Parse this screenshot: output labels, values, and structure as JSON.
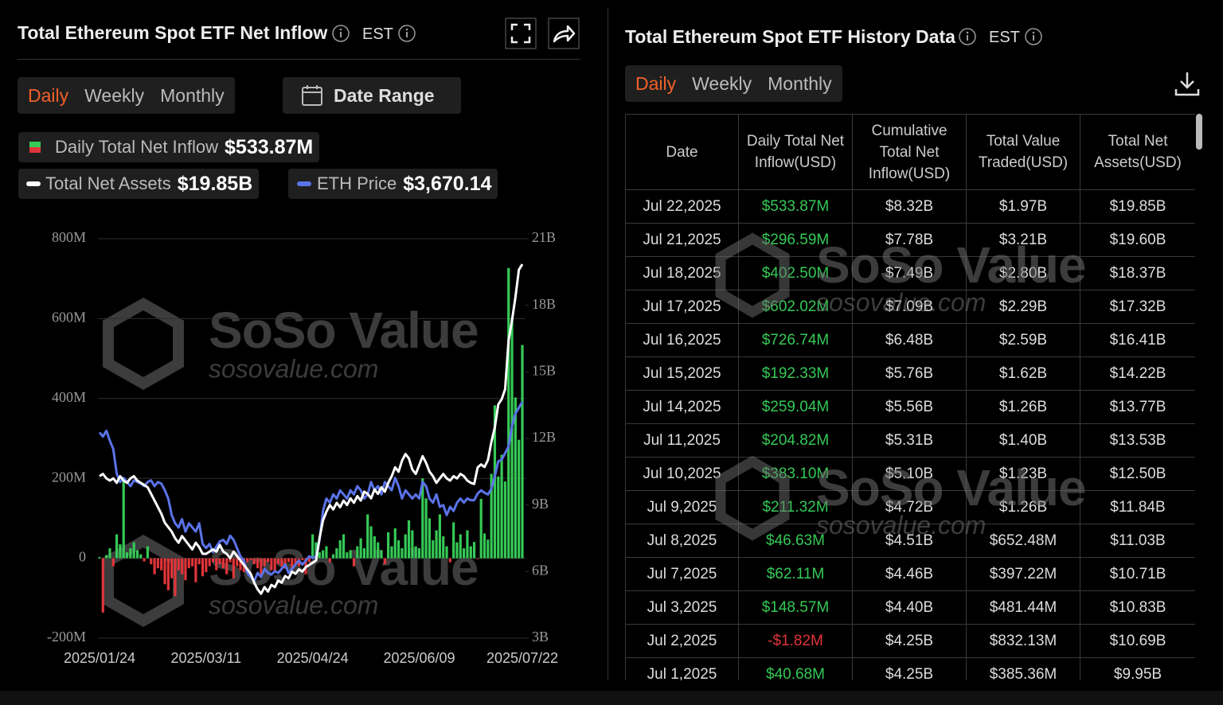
{
  "header": {
    "title": "Total Ethereum Spot ETF Net Inflow",
    "timezone": "EST",
    "tabs": [
      "Daily",
      "Weekly",
      "Monthly"
    ],
    "date_range": "Date Range"
  },
  "history": {
    "title": "Total Ethereum Spot ETF History Data",
    "timezone": "EST",
    "tabs": [
      "Daily",
      "Weekly",
      "Monthly"
    ],
    "columns": [
      "Date",
      "Daily Total Net Inflow(USD)",
      "Cumulative Total Net Inflow(USD)",
      "Total Value Traded(USD)",
      "Total Net Assets(USD)"
    ],
    "rows": [
      [
        "Jul 22,2025",
        "$533.87M",
        "$8.32B",
        "$1.97B",
        "$19.85B"
      ],
      [
        "Jul 21,2025",
        "$296.59M",
        "$7.78B",
        "$3.21B",
        "$19.60B"
      ],
      [
        "Jul 18,2025",
        "$402.50M",
        "$7.49B",
        "$2.80B",
        "$18.37B"
      ],
      [
        "Jul 17,2025",
        "$602.02M",
        "$7.09B",
        "$2.29B",
        "$17.32B"
      ],
      [
        "Jul 16,2025",
        "$726.74M",
        "$6.48B",
        "$2.59B",
        "$16.41B"
      ],
      [
        "Jul 15,2025",
        "$192.33M",
        "$5.76B",
        "$1.62B",
        "$14.22B"
      ],
      [
        "Jul 14,2025",
        "$259.04M",
        "$5.56B",
        "$1.26B",
        "$13.77B"
      ],
      [
        "Jul 11,2025",
        "$204.82M",
        "$5.31B",
        "$1.40B",
        "$13.53B"
      ],
      [
        "Jul 10,2025",
        "$383.10M",
        "$5.10B",
        "$1.23B",
        "$12.50B"
      ],
      [
        "Jul 9,2025",
        "$211.32M",
        "$4.72B",
        "$1.26B",
        "$11.84B"
      ],
      [
        "Jul 8,2025",
        "$46.63M",
        "$4.51B",
        "$652.48M",
        "$11.03B"
      ],
      [
        "Jul 7,2025",
        "$62.11M",
        "$4.46B",
        "$397.22M",
        "$10.71B"
      ],
      [
        "Jul 3,2025",
        "$148.57M",
        "$4.40B",
        "$481.44M",
        "$10.83B"
      ],
      [
        "Jul 2,2025",
        "-$1.82M",
        "$4.25B",
        "$832.13M",
        "$10.69B"
      ],
      [
        "Jul 1,2025",
        "$40.68M",
        "$4.25B",
        "$385.36M",
        "$9.95B"
      ]
    ]
  },
  "watermark": [
    "SoSo Value",
    "sosovalue.com"
  ],
  "chart_data": {
    "type": "bar",
    "categories": [
      "2025/01/24",
      null,
      null,
      null,
      null,
      null,
      null,
      null,
      null,
      null,
      null,
      null,
      null,
      null,
      null,
      null,
      null,
      null,
      null,
      null,
      null,
      null,
      null,
      null,
      null,
      null,
      null,
      null,
      null,
      null,
      null,
      "2025/03/11",
      null,
      null,
      null,
      null,
      null,
      null,
      null,
      null,
      null,
      null,
      null,
      null,
      null,
      null,
      null,
      null,
      null,
      null,
      null,
      null,
      null,
      null,
      null,
      null,
      null,
      null,
      null,
      null,
      null,
      null,
      "2025/04/24",
      null,
      null,
      null,
      null,
      null,
      null,
      null,
      null,
      null,
      null,
      null,
      null,
      null,
      null,
      null,
      null,
      null,
      null,
      null,
      null,
      null,
      null,
      null,
      null,
      null,
      null,
      null,
      null,
      null,
      null,
      "2025/06/09",
      null,
      null,
      null,
      null,
      null,
      null,
      null,
      null,
      null,
      null,
      null,
      null,
      null,
      null,
      null,
      null,
      null,
      null,
      null,
      null,
      null,
      null,
      null,
      null,
      null,
      null,
      null,
      null,
      null,
      "2025/07/22"
    ],
    "ylim": [
      -200,
      800
    ],
    "yticks": [
      {
        "value": -200,
        "label": "-200M"
      },
      0,
      {
        "value": 200,
        "label": "200M"
      },
      {
        "value": 400,
        "label": "400M"
      },
      {
        "value": 600,
        "label": "600M"
      },
      {
        "value": 800,
        "label": "800M"
      }
    ],
    "y2lim": [
      3,
      21
    ],
    "y2ticks": [
      {
        "value": 3,
        "label": "3B"
      },
      {
        "value": 6,
        "label": "6B"
      },
      {
        "value": 9,
        "label": "9B"
      },
      {
        "value": 12,
        "label": "12B"
      },
      {
        "value": 15,
        "label": "15B"
      },
      {
        "value": 18,
        "label": "18B"
      },
      {
        "value": 21,
        "label": "21B"
      }
    ],
    "y3lim": [
      810,
      5645
    ],
    "grid": true,
    "series": [
      {
        "name": "Daily Total Net Inflow",
        "current": "$533.87M",
        "color": "#35c956",
        "negative_color": "#e0353a",
        "values": [
          3,
          -136,
          8,
          25,
          -20,
          60,
          35,
          200,
          15,
          25,
          40,
          20,
          10,
          -8,
          30,
          -15,
          -40,
          -25,
          -30,
          -65,
          -80,
          -50,
          -95,
          -30,
          -40,
          -55,
          -25,
          -20,
          -60,
          -15,
          -45,
          -35,
          -20,
          -10,
          -30,
          -15,
          -25,
          -40,
          -10,
          -50,
          -20,
          -30,
          -35,
          -10,
          -5,
          -15,
          -25,
          -40,
          -20,
          -10,
          -30,
          -35,
          -15,
          -20,
          -25,
          -10,
          -30,
          -15,
          -20,
          -5,
          -40,
          -10,
          60,
          40,
          15,
          20,
          30,
          -10,
          10,
          25,
          45,
          60,
          15,
          20,
          -20,
          30,
          50,
          25,
          110,
          80,
          55,
          40,
          20,
          -15,
          65,
          30,
          75,
          45,
          25,
          60,
          95,
          70,
          30,
          25,
          200,
          150,
          100,
          45,
          70,
          110,
          55,
          30,
          -10,
          90,
          40,
          60,
          25,
          70,
          30,
          40.68,
          -1.82,
          148.57,
          62.11,
          46.63,
          211.32,
          383.1,
          204.82,
          259.04,
          192.33,
          726.74,
          602.02,
          402.5,
          296.59,
          533.87
        ]
      },
      {
        "name": "Total Net Assets",
        "current": "$19.85B",
        "color": "#ffffff",
        "axis": "y2",
        "values": [
          10.3,
          10.4,
          10.2,
          10.1,
          10.2,
          10.0,
          10.3,
          10.1,
          10.0,
          10.2,
          10.3,
          10.1,
          10.0,
          9.9,
          9.8,
          9.5,
          9.2,
          8.9,
          8.6,
          8.2,
          8.0,
          7.8,
          7.5,
          7.3,
          7.6,
          7.4,
          7.2,
          7.0,
          7.3,
          7.1,
          6.8,
          6.8,
          6.9,
          7.0,
          6.9,
          7.2,
          6.9,
          6.8,
          6.6,
          6.9,
          6.7,
          6.5,
          6.3,
          6.1,
          5.9,
          5.5,
          5.2,
          5.0,
          5.3,
          5.1,
          5.4,
          5.3,
          5.6,
          5.5,
          5.8,
          5.7,
          6.0,
          5.9,
          6.1,
          6.0,
          6.2,
          6.3,
          6.4,
          6.5,
          7.5,
          8.3,
          8.7,
          9.0,
          8.8,
          9.1,
          8.9,
          9.2,
          9.0,
          9.3,
          9.1,
          9.4,
          9.2,
          9.6,
          9.5,
          9.3,
          9.7,
          9.5,
          9.8,
          9.6,
          10.0,
          10.3,
          10.7,
          10.5,
          11.0,
          11.3,
          11.1,
          10.6,
          10.4,
          10.8,
          11.2,
          10.9,
          10.5,
          10.3,
          10.0,
          10.2,
          10.4,
          10.2,
          10.1,
          10.3,
          10.2,
          10.4,
          10.3,
          10.1,
          10.0,
          9.95,
          10.69,
          10.83,
          10.71,
          11.03,
          11.84,
          12.5,
          13.53,
          13.77,
          14.22,
          16.41,
          17.32,
          18.37,
          19.6,
          19.85
        ]
      },
      {
        "name": "ETH Price",
        "current": "$3,670.14",
        "color": "#5b73e8",
        "axis": "y3",
        "values": [
          3300,
          3250,
          3320,
          3200,
          3100,
          2800,
          2700,
          2750,
          2700,
          2650,
          2720,
          2700,
          2680,
          2650,
          2700,
          2720,
          2650,
          2700,
          2680,
          2600,
          2500,
          2300,
          2200,
          2150,
          2250,
          2100,
          2200,
          2150,
          2100,
          2200,
          1950,
          1900,
          1950,
          1850,
          1920,
          1980,
          2000,
          1950,
          2050,
          2000,
          1900,
          1800,
          1750,
          1600,
          1550,
          1500,
          1600,
          1550,
          1650,
          1600,
          1580,
          1620,
          1600,
          1650,
          1700,
          1600,
          1650,
          1700,
          1750,
          1700,
          1750,
          1800,
          1780,
          1800,
          2000,
          2350,
          2500,
          2450,
          2550,
          2500,
          2600,
          2550,
          2500,
          2600,
          2550,
          2650,
          2600,
          2500,
          2550,
          2700,
          2600,
          2650,
          2550,
          2700,
          2650,
          2600,
          2750,
          2650,
          2500,
          2600,
          2550,
          2500,
          2550,
          2500,
          2700,
          2650,
          2500,
          2450,
          2550,
          2400,
          2420,
          2300,
          2400,
          2350,
          2450,
          2500,
          2450,
          2500,
          2480,
          2480,
          2560,
          2600,
          2570,
          2550,
          2620,
          2770,
          2950,
          2970,
          3050,
          3130,
          3380,
          3530,
          3600,
          3670.14
        ]
      }
    ]
  }
}
